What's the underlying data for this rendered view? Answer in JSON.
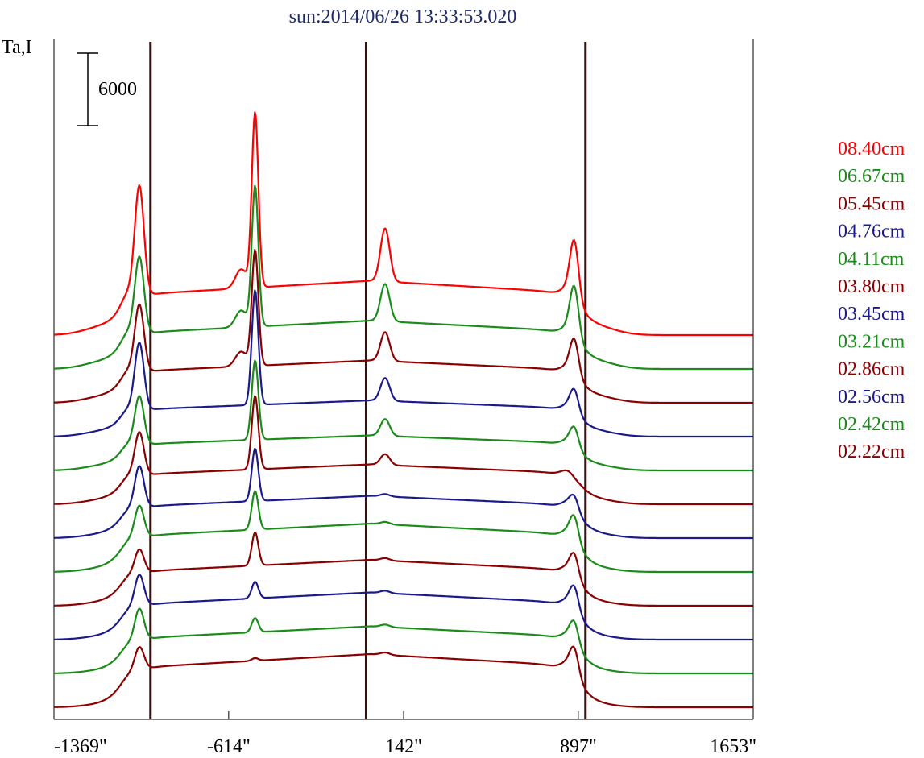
{
  "chart_data": {
    "type": "line",
    "title": "sun:2014/06/26 13:33:53.020",
    "ylabel": "Ta,I",
    "xlabel": "",
    "scale_bar_label": "6000",
    "scale_bar_value": 6000,
    "xlim": [
      -1369,
      1653
    ],
    "x_ticks": [
      {
        "value": -1369,
        "label": "-1369\""
      },
      {
        "value": -614,
        "label": "-614\""
      },
      {
        "value": 142,
        "label": "142\""
      },
      {
        "value": 897,
        "label": "897\""
      },
      {
        "value": 1653,
        "label": "1653\""
      }
    ],
    "vertical_lines_x": [
      -952,
      -20,
      928
    ],
    "series": [
      {
        "name": "08.40cm",
        "color": "#ff0000",
        "profile": "big",
        "peaks": {
          "p1": 11800,
          "p2": 17600,
          "p3": 4400,
          "p4": 7200,
          "plateau": 4500,
          "edge_mid": 3800
        }
      },
      {
        "name": "06.67cm",
        "color": "#1a8c1a",
        "profile": "big",
        "peaks": {
          "p1": 8800,
          "p2": 14400,
          "p3": 3100,
          "p4": 6300,
          "plateau": 4000,
          "edge_mid": 3200
        }
      },
      {
        "name": "05.45cm",
        "color": "#8b0000",
        "profile": "big",
        "peaks": {
          "p1": 7700,
          "p2": 12000,
          "p3": 2400,
          "p4": 4800,
          "plateau": 3500,
          "edge_mid": 2800
        }
      },
      {
        "name": "04.76cm",
        "color": "#1a1a8c",
        "profile": "med",
        "peaks": {
          "p1": 7400,
          "p2": 11600,
          "p3": 1900,
          "p4": 3500,
          "plateau": 3000,
          "edge_mid": 2400
        }
      },
      {
        "name": "04.11cm",
        "color": "#1a8c1a",
        "profile": "med",
        "peaks": {
          "p1": 5800,
          "p2": 8600,
          "p3": 1400,
          "p4": 3200,
          "plateau": 2900,
          "edge_mid": 2200
        }
      },
      {
        "name": "03.80cm",
        "color": "#8b0000",
        "profile": "med",
        "peaks": {
          "p1": 5600,
          "p2": 8400,
          "p3": 900,
          "p4": 1800,
          "plateau": 3300,
          "edge_mid": 2000
        }
      },
      {
        "name": "03.45cm",
        "color": "#1a1a8c",
        "profile": "flat",
        "peaks": {
          "p1": 5600,
          "p2": 6800,
          "p3": 200,
          "p4": 3100,
          "plateau": 3500,
          "edge_mid": 1700
        }
      },
      {
        "name": "03.21cm",
        "color": "#1a8c1a",
        "profile": "flat",
        "peaks": {
          "p1": 5100,
          "p2": 6000,
          "p3": 200,
          "p4": 4200,
          "plateau": 4000,
          "edge_mid": 1600
        }
      },
      {
        "name": "02.86cm",
        "color": "#8b0000",
        "profile": "flat",
        "peaks": {
          "p1": 4300,
          "p2": 5400,
          "p3": 200,
          "p4": 3900,
          "plateau": 3800,
          "edge_mid": 1500
        }
      },
      {
        "name": "02.56cm",
        "color": "#1a1a8c",
        "profile": "flat",
        "peaks": {
          "p1": 5000,
          "p2": 4100,
          "p3": 200,
          "p4": 4000,
          "plateau": 3900,
          "edge_mid": 1400
        }
      },
      {
        "name": "02.42cm",
        "color": "#1a8c1a",
        "profile": "flat",
        "peaks": {
          "p1": 5000,
          "p2": 3900,
          "p3": 200,
          "p4": 3900,
          "plateau": 3900,
          "edge_mid": 1300
        }
      },
      {
        "name": "02.22cm",
        "color": "#8b0000",
        "profile": "flat",
        "peaks": {
          "p1": 4600,
          "p2": 3300,
          "p3": 200,
          "p4": 4500,
          "plateau": 4400,
          "edge_mid": 1200
        }
      }
    ],
    "offset_between_series": 2800,
    "grid": false,
    "legend_position": "right"
  }
}
